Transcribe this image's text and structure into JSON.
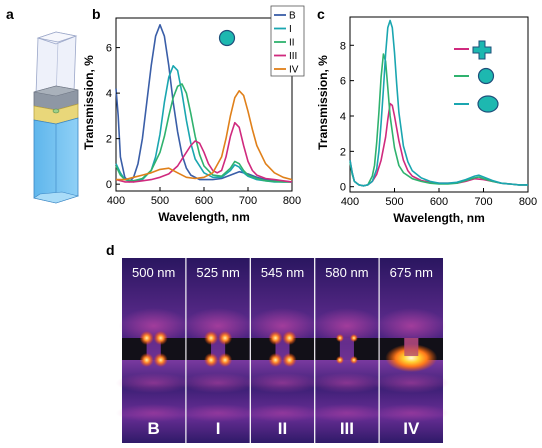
{
  "panels": {
    "a": "a",
    "b": "b",
    "c": "c",
    "d": "d"
  },
  "colors": {
    "B": "#3a5ea8",
    "I": "#1aa6b0",
    "II": "#2fb26e",
    "III": "#d02a7e",
    "IV": "#e0801a",
    "circle_fill": "#1db8b0",
    "circle_edge": "#1f4f7a"
  },
  "chart_data": [
    {
      "type": "line",
      "panel": "b",
      "xlabel": "Wavelength, nm",
      "ylabel": "Transmission, %",
      "xlim": [
        400,
        800
      ],
      "ylim": [
        -0.3,
        7.3
      ],
      "xticks": [
        400,
        500,
        600,
        700,
        800
      ],
      "yticks": [
        0,
        2,
        4,
        6
      ],
      "legend_position": "top-right",
      "inset_icon": "circle",
      "series": [
        {
          "name": "B",
          "color": "#3a5ea8",
          "x": [
            400,
            405,
            410,
            420,
            430,
            440,
            450,
            460,
            470,
            480,
            490,
            500,
            510,
            520,
            530,
            540,
            550,
            560,
            570,
            580,
            590,
            600,
            620,
            640,
            660,
            680,
            700,
            720,
            740,
            760,
            780,
            800
          ],
          "y": [
            4.2,
            3.0,
            1.2,
            0.3,
            0.1,
            0.3,
            0.9,
            2.0,
            3.6,
            5.2,
            6.5,
            7.0,
            6.5,
            5.2,
            3.6,
            2.3,
            1.3,
            0.7,
            0.4,
            0.3,
            0.2,
            0.2,
            0.2,
            0.25,
            0.4,
            0.55,
            0.45,
            0.3,
            0.2,
            0.15,
            0.12,
            0.1
          ]
        },
        {
          "name": "I",
          "color": "#1aa6b0",
          "x": [
            400,
            410,
            420,
            440,
            460,
            480,
            490,
            500,
            510,
            520,
            530,
            540,
            550,
            560,
            570,
            580,
            600,
            620,
            640,
            660,
            670,
            680,
            690,
            700,
            720,
            740,
            760,
            780,
            800
          ],
          "y": [
            0.9,
            0.5,
            0.2,
            0.1,
            0.2,
            0.6,
            1.2,
            2.2,
            3.6,
            4.7,
            5.2,
            5.0,
            4.0,
            2.8,
            1.8,
            1.1,
            0.5,
            0.3,
            0.3,
            0.6,
            0.85,
            0.75,
            0.5,
            0.35,
            0.2,
            0.15,
            0.1,
            0.1,
            0.1
          ]
        },
        {
          "name": "II",
          "color": "#2fb26e",
          "x": [
            400,
            410,
            420,
            440,
            460,
            480,
            500,
            510,
            520,
            530,
            540,
            550,
            560,
            570,
            580,
            590,
            600,
            620,
            640,
            660,
            670,
            680,
            690,
            700,
            720,
            740,
            760,
            780,
            800
          ],
          "y": [
            0.8,
            0.4,
            0.2,
            0.15,
            0.25,
            0.6,
            1.4,
            2.1,
            3.0,
            3.8,
            4.3,
            4.4,
            4.0,
            3.1,
            2.1,
            1.3,
            0.8,
            0.4,
            0.35,
            0.7,
            1.0,
            0.9,
            0.6,
            0.4,
            0.25,
            0.15,
            0.12,
            0.1,
            0.1
          ]
        },
        {
          "name": "III",
          "color": "#d02a7e",
          "x": [
            400,
            420,
            440,
            460,
            480,
            500,
            520,
            540,
            550,
            560,
            570,
            580,
            590,
            600,
            610,
            620,
            630,
            640,
            650,
            660,
            670,
            680,
            690,
            700,
            710,
            720,
            740,
            760,
            780,
            800
          ],
          "y": [
            0.2,
            0.1,
            0.1,
            0.15,
            0.2,
            0.3,
            0.45,
            0.8,
            1.1,
            1.4,
            1.7,
            1.9,
            1.8,
            1.4,
            0.9,
            0.6,
            0.5,
            0.6,
            1.2,
            2.1,
            2.7,
            2.5,
            1.7,
            1.0,
            0.6,
            0.4,
            0.25,
            0.2,
            0.15,
            0.1
          ]
        },
        {
          "name": "IV",
          "color": "#e0801a",
          "x": [
            400,
            420,
            440,
            460,
            480,
            500,
            520,
            540,
            560,
            580,
            600,
            620,
            640,
            650,
            660,
            670,
            680,
            690,
            700,
            710,
            720,
            740,
            760,
            780,
            800
          ],
          "y": [
            0.2,
            0.2,
            0.3,
            0.4,
            0.5,
            0.65,
            0.7,
            0.5,
            0.3,
            0.25,
            0.3,
            0.5,
            1.2,
            2.0,
            3.0,
            3.8,
            4.1,
            3.9,
            3.2,
            2.4,
            1.7,
            0.9,
            0.5,
            0.3,
            0.2
          ]
        }
      ]
    },
    {
      "type": "line",
      "panel": "c",
      "xlabel": "Wavelength, nm",
      "ylabel": "Transmission, %",
      "xlim": [
        400,
        800
      ],
      "ylim": [
        -0.3,
        9.6
      ],
      "xticks": [
        400,
        500,
        600,
        700,
        800
      ],
      "yticks": [
        0,
        2,
        4,
        6,
        8
      ],
      "legend_position": "top-right",
      "series": [
        {
          "color": "#d02a7e",
          "icon": "cross",
          "x": [
            400,
            405,
            410,
            420,
            430,
            440,
            450,
            460,
            470,
            480,
            485,
            490,
            495,
            500,
            510,
            520,
            530,
            540,
            560,
            580,
            600,
            620,
            640,
            660,
            680,
            700,
            720,
            740,
            760,
            780,
            800
          ],
          "y": [
            1.5,
            0.8,
            0.3,
            0.1,
            0.05,
            0.1,
            0.3,
            0.7,
            1.5,
            2.8,
            3.8,
            4.7,
            4.6,
            4.0,
            2.6,
            1.5,
            0.9,
            0.6,
            0.35,
            0.25,
            0.2,
            0.2,
            0.2,
            0.3,
            0.45,
            0.4,
            0.3,
            0.2,
            0.15,
            0.1,
            0.1
          ]
        },
        {
          "color": "#2fb26e",
          "icon": "circle",
          "x": [
            400,
            405,
            410,
            420,
            430,
            440,
            450,
            455,
            460,
            465,
            470,
            475,
            480,
            485,
            490,
            500,
            510,
            520,
            540,
            560,
            580,
            600,
            620,
            640,
            660,
            680,
            690,
            700,
            720,
            740,
            760,
            780,
            800
          ],
          "y": [
            1.4,
            0.7,
            0.3,
            0.1,
            0.05,
            0.1,
            0.6,
            1.2,
            2.5,
            4.2,
            6.2,
            7.5,
            7.1,
            5.6,
            4.0,
            2.2,
            1.2,
            0.8,
            0.45,
            0.3,
            0.2,
            0.15,
            0.15,
            0.2,
            0.35,
            0.5,
            0.55,
            0.45,
            0.3,
            0.2,
            0.15,
            0.1,
            0.1
          ]
        },
        {
          "color": "#1aa6b0",
          "icon": "ellipse",
          "x": [
            400,
            405,
            410,
            420,
            430,
            440,
            450,
            460,
            465,
            470,
            475,
            480,
            485,
            490,
            495,
            500,
            505,
            510,
            520,
            530,
            540,
            560,
            580,
            600,
            620,
            640,
            660,
            680,
            690,
            700,
            720,
            740,
            760,
            780,
            800
          ],
          "y": [
            1.5,
            0.8,
            0.3,
            0.1,
            0.05,
            0.1,
            0.3,
            1.0,
            2.0,
            3.6,
            5.5,
            7.5,
            9.0,
            9.4,
            9.0,
            7.6,
            5.8,
            4.2,
            2.3,
            1.4,
            0.9,
            0.5,
            0.3,
            0.2,
            0.2,
            0.25,
            0.4,
            0.6,
            0.65,
            0.55,
            0.35,
            0.2,
            0.15,
            0.1,
            0.1
          ]
        }
      ]
    }
  ],
  "panel_d": {
    "fields": [
      {
        "wavelength": "500 nm",
        "label": "B",
        "glow": "tips"
      },
      {
        "wavelength": "525 nm",
        "label": "I",
        "glow": "tips"
      },
      {
        "wavelength": "545 nm",
        "label": "II",
        "glow": "tips"
      },
      {
        "wavelength": "580 nm",
        "label": "III",
        "glow": "weak"
      },
      {
        "wavelength": "675 nm",
        "label": "IV",
        "glow": "strong"
      }
    ]
  }
}
